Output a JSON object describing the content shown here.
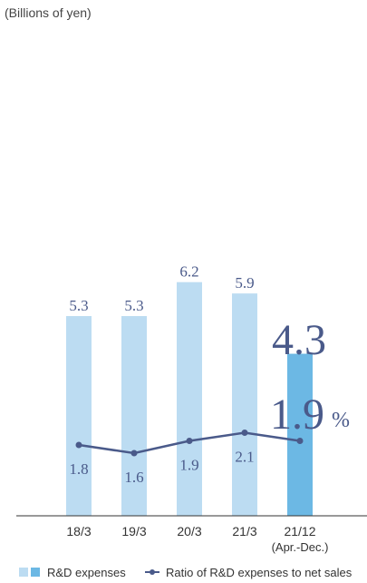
{
  "unit_label": "(Billions of yen)",
  "chart_data": {
    "type": "bar",
    "categories": [
      "18/3",
      "19/3",
      "20/3",
      "21/3",
      "21/12"
    ],
    "category_sublabels": [
      "",
      "",
      "",
      "",
      "(Apr.-Dec.)"
    ],
    "series": [
      {
        "name": "R&D expenses",
        "kind": "bar",
        "values": [
          5.3,
          5.3,
          6.2,
          5.9,
          4.3
        ],
        "labels": [
          "5.3",
          "5.3",
          "6.2",
          "5.9",
          "4.3"
        ],
        "color": "#bcdcf2",
        "highlight_color": "#6cb8e4"
      },
      {
        "name": "Ratio of R&D expenses to net sales",
        "kind": "line",
        "values": [
          1.8,
          1.6,
          1.9,
          2.1,
          1.9
        ],
        "labels": [
          "1.8",
          "1.6",
          "1.9",
          "2.1",
          "1.9"
        ],
        "unit": "%",
        "color": "#4a5a8a"
      }
    ],
    "ylim": [
      0,
      8
    ],
    "ratio_ylim": [
      0,
      10
    ],
    "grid": false,
    "legend_position": "bottom"
  }
}
